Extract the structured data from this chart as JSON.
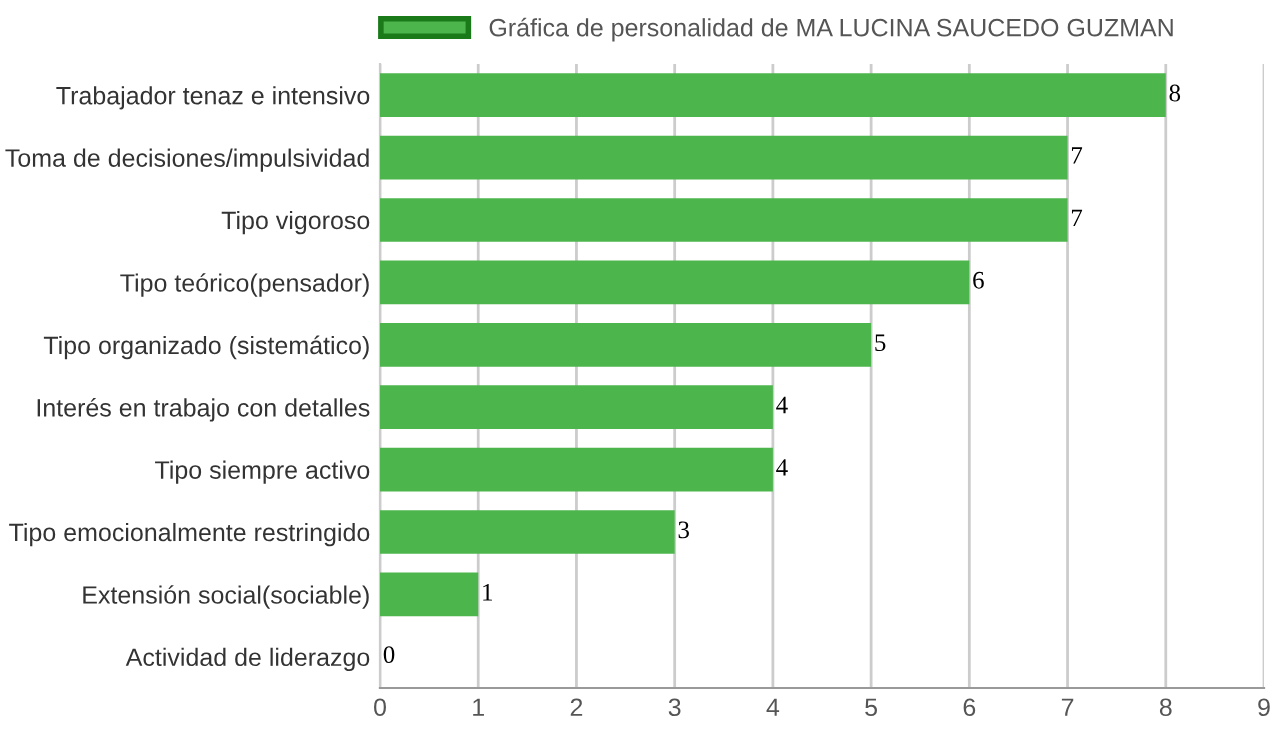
{
  "chart_data": {
    "type": "bar",
    "orientation": "horizontal",
    "categories": [
      "Trabajador tenaz e intensivo",
      "Toma de decisiones/impulsividad",
      "Tipo vigoroso",
      "Tipo teórico(pensador)",
      "Tipo organizado (sistemático)",
      "Interés en trabajo con detalles",
      "Tipo siempre activo",
      "Tipo emocionalmente restringido",
      "Extensión social(sociable)",
      "Actividad de liderazgo"
    ],
    "series": [
      {
        "name": "Gráfica de personalidad de MA LUCINA SAUCEDO GUZMAN",
        "color": "#4cb54c",
        "values": [
          8,
          7,
          7,
          6,
          5,
          4,
          4,
          3,
          1,
          0
        ]
      }
    ],
    "xlim": [
      0,
      9
    ],
    "xticks": [
      0,
      1,
      2,
      3,
      4,
      5,
      6,
      7,
      8,
      9
    ],
    "grid": "x",
    "legend": "top",
    "data_labels": true
  }
}
